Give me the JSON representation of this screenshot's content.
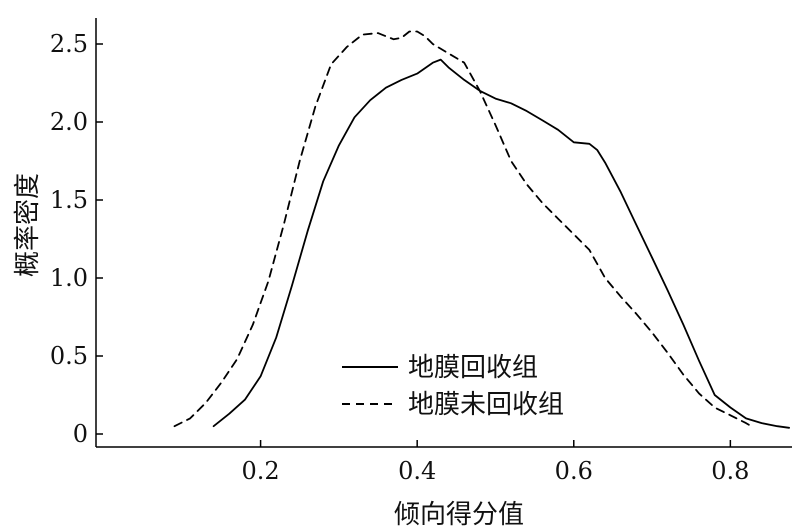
{
  "chart_data": {
    "type": "line",
    "title": "",
    "xlabel": "倾向得分值",
    "ylabel": "概率密度",
    "xlim": [
      0.0,
      0.88
    ],
    "ylim": [
      0.0,
      2.6
    ],
    "xticks": [
      0.2,
      0.4,
      0.6,
      0.8
    ],
    "xtick_labels": [
      "0.2",
      "0.4",
      "0.6",
      "0.8"
    ],
    "yticks": [
      0,
      0.5,
      1.0,
      1.5,
      2.0,
      2.5
    ],
    "ytick_labels": [
      "0",
      "0.5",
      "1.0",
      "1.5",
      "2.0",
      "2.5"
    ],
    "grid": false,
    "legend_position": "bottom-center",
    "series": [
      {
        "name": "地膜回收组",
        "style": "solid",
        "color": "#000000",
        "x": [
          0.14,
          0.16,
          0.18,
          0.2,
          0.22,
          0.24,
          0.26,
          0.28,
          0.3,
          0.32,
          0.34,
          0.36,
          0.38,
          0.4,
          0.42,
          0.43,
          0.44,
          0.46,
          0.48,
          0.5,
          0.52,
          0.54,
          0.56,
          0.58,
          0.6,
          0.62,
          0.63,
          0.64,
          0.66,
          0.68,
          0.7,
          0.72,
          0.74,
          0.76,
          0.78,
          0.8,
          0.82,
          0.84,
          0.86,
          0.875
        ],
        "y": [
          0.05,
          0.13,
          0.22,
          0.37,
          0.62,
          0.95,
          1.3,
          1.62,
          1.85,
          2.03,
          2.14,
          2.22,
          2.27,
          2.31,
          2.38,
          2.4,
          2.35,
          2.27,
          2.2,
          2.15,
          2.12,
          2.07,
          2.01,
          1.95,
          1.87,
          1.86,
          1.82,
          1.74,
          1.55,
          1.34,
          1.13,
          0.92,
          0.7,
          0.47,
          0.25,
          0.17,
          0.1,
          0.07,
          0.05,
          0.04
        ]
      },
      {
        "name": "地膜未回收组",
        "style": "dashed",
        "color": "#000000",
        "x": [
          0.09,
          0.11,
          0.13,
          0.15,
          0.17,
          0.19,
          0.21,
          0.23,
          0.25,
          0.27,
          0.29,
          0.31,
          0.33,
          0.35,
          0.37,
          0.38,
          0.39,
          0.4,
          0.41,
          0.42,
          0.44,
          0.46,
          0.48,
          0.5,
          0.52,
          0.54,
          0.56,
          0.58,
          0.6,
          0.62,
          0.64,
          0.66,
          0.68,
          0.7,
          0.72,
          0.74,
          0.76,
          0.78,
          0.8,
          0.82,
          0.83
        ],
        "y": [
          0.05,
          0.1,
          0.2,
          0.33,
          0.48,
          0.7,
          0.98,
          1.35,
          1.75,
          2.1,
          2.37,
          2.48,
          2.56,
          2.57,
          2.53,
          2.54,
          2.58,
          2.58,
          2.55,
          2.5,
          2.44,
          2.38,
          2.2,
          1.98,
          1.75,
          1.6,
          1.48,
          1.38,
          1.28,
          1.18,
          1.0,
          0.88,
          0.77,
          0.65,
          0.52,
          0.38,
          0.26,
          0.17,
          0.12,
          0.07,
          0.04
        ]
      }
    ]
  }
}
